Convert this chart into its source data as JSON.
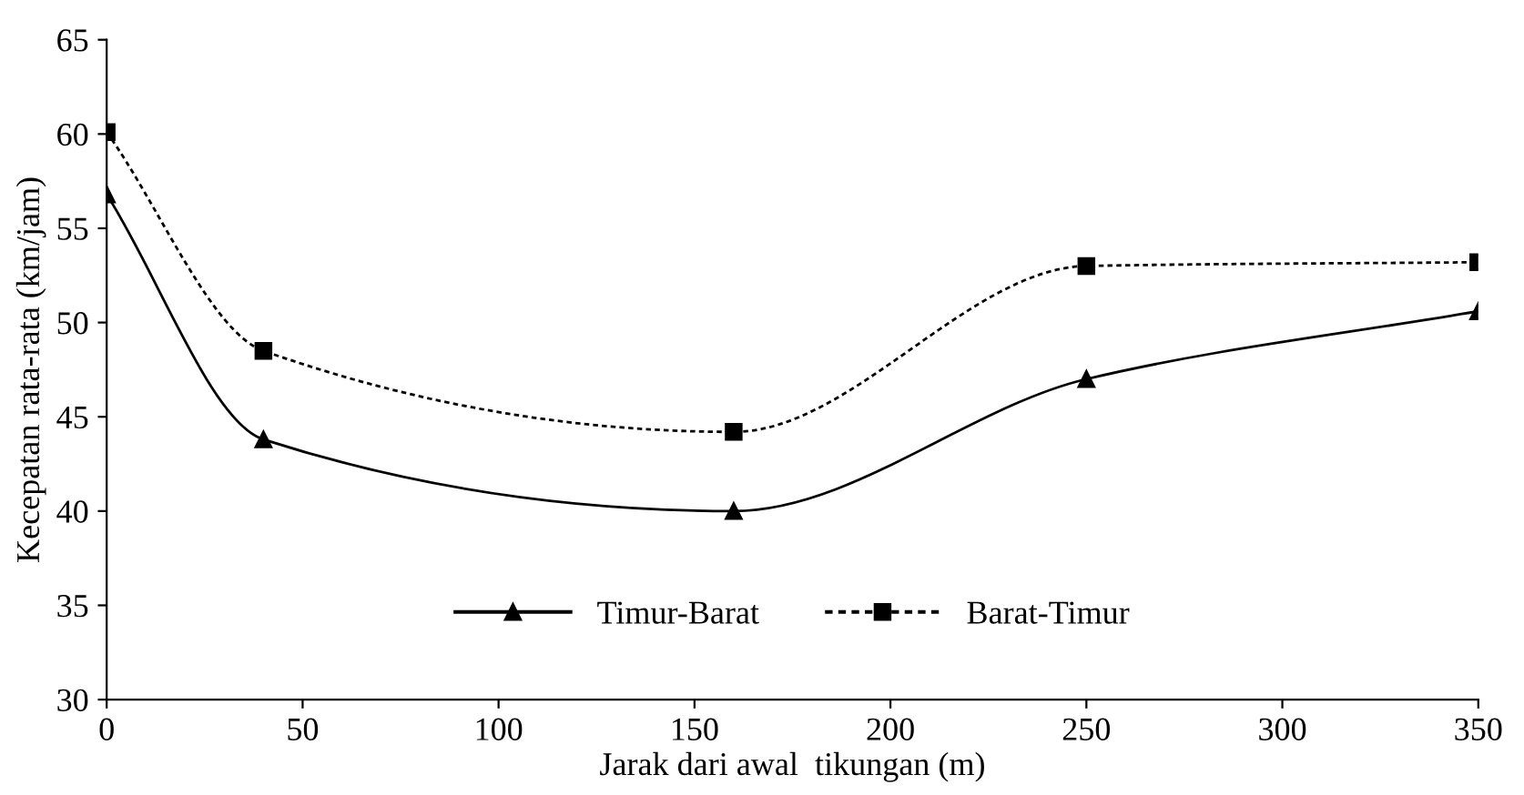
{
  "chart_data": {
    "type": "line",
    "xlabel": "Jarak dari awal  tikungan (m)",
    "ylabel": "Kecepatan rata-rata (km/jam)",
    "x": [
      0,
      40,
      160,
      250,
      350
    ],
    "series": [
      {
        "name": "Timur-Barat",
        "color": "#000000",
        "marker": "triangle",
        "line_style": "solid",
        "values": [
          56.8,
          43.8,
          40.0,
          47.0,
          50.6
        ]
      },
      {
        "name": "Barat-Timur",
        "color": "#000000",
        "marker": "square",
        "line_style": "dotted",
        "values": [
          60.1,
          48.5,
          44.2,
          53.0,
          53.2
        ]
      }
    ],
    "xlim": [
      0,
      350
    ],
    "xticks": [
      0,
      50,
      100,
      150,
      200,
      250,
      300,
      350
    ],
    "ylim": [
      30,
      65
    ],
    "yticks": [
      30,
      35,
      40,
      45,
      50,
      55,
      60,
      65
    ],
    "grid": false,
    "legend": "bottom"
  }
}
